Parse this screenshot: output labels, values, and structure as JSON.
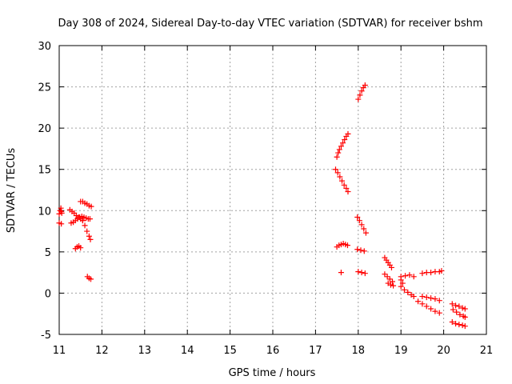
{
  "chart_data": {
    "type": "scatter",
    "title": "Day 308 of 2024, Sidereal Day-to-day VTEC variation (SDTVAR) for receiver bshm",
    "xlabel": "GPS time / hours",
    "ylabel": "SDTVAR / TECUs",
    "xlim": [
      11,
      21
    ],
    "ylim": [
      -5,
      30
    ],
    "grid": true,
    "xticks": [
      "11",
      "12",
      "13",
      "14",
      "15",
      "16",
      "17",
      "18",
      "19",
      "20",
      "21"
    ],
    "yticks": [
      "-5",
      "0",
      "5",
      "10",
      "15",
      "20",
      "25",
      "30"
    ],
    "marker": "+",
    "color": "#ff0000",
    "series": [
      {
        "name": "s1",
        "x": [
          11.0,
          11.02,
          11.04,
          11.05,
          11.06
        ],
        "y": [
          9.6,
          10.0,
          10.3,
          9.9,
          9.7
        ]
      },
      {
        "name": "s2",
        "x": [
          11.0,
          11.05
        ],
        "y": [
          8.5,
          8.4
        ]
      },
      {
        "name": "s3",
        "x": [
          11.25,
          11.3,
          11.35,
          11.4,
          11.45,
          11.5,
          11.55
        ],
        "y": [
          10.1,
          9.9,
          9.7,
          9.4,
          9.2,
          9.0,
          8.8
        ]
      },
      {
        "name": "s4",
        "x": [
          11.28,
          11.33,
          11.38,
          11.43,
          11.48,
          11.53,
          11.58,
          11.63,
          11.68,
          11.72
        ],
        "y": [
          8.5,
          8.6,
          8.8,
          9.0,
          9.2,
          9.3,
          9.2,
          9.1,
          9.0,
          9.0
        ]
      },
      {
        "name": "s5",
        "x": [
          11.5,
          11.55,
          11.6,
          11.65,
          11.7,
          11.75
        ],
        "y": [
          11.1,
          11.1,
          10.9,
          10.8,
          10.6,
          10.5
        ]
      },
      {
        "name": "s6",
        "x": [
          11.55,
          11.6,
          11.65,
          11.7,
          11.73
        ],
        "y": [
          8.8,
          8.2,
          7.5,
          6.9,
          6.5
        ]
      },
      {
        "name": "s7",
        "x": [
          11.38,
          11.42,
          11.46,
          11.5
        ],
        "y": [
          5.4,
          5.6,
          5.7,
          5.5
        ]
      },
      {
        "name": "s8",
        "x": [
          11.66,
          11.7,
          11.74
        ],
        "y": [
          2.0,
          1.8,
          1.7
        ]
      },
      {
        "name": "s9",
        "x": [
          17.5,
          17.53,
          17.56,
          17.6,
          17.64,
          17.68,
          17.72,
          17.76
        ],
        "y": [
          16.5,
          17.0,
          17.4,
          17.8,
          18.2,
          18.6,
          19.0,
          19.3
        ]
      },
      {
        "name": "s10",
        "x": [
          17.47,
          17.52,
          17.57,
          17.62,
          17.67,
          17.72,
          17.76
        ],
        "y": [
          15.0,
          14.6,
          14.1,
          13.6,
          13.1,
          12.7,
          12.3
        ]
      },
      {
        "name": "s11",
        "x": [
          17.5,
          17.55,
          17.6,
          17.65,
          17.7,
          17.75
        ],
        "y": [
          5.6,
          5.8,
          5.9,
          6.0,
          5.9,
          5.8
        ]
      },
      {
        "name": "s12",
        "x": [
          17.6
        ],
        "y": [
          2.5
        ]
      },
      {
        "name": "s13",
        "x": [
          18.0,
          18.04,
          18.08,
          18.12,
          18.16
        ],
        "y": [
          23.5,
          24.0,
          24.5,
          24.9,
          25.2
        ]
      },
      {
        "name": "s14",
        "x": [
          17.98,
          18.03,
          18.08,
          18.13,
          18.18
        ],
        "y": [
          9.2,
          8.8,
          8.3,
          7.8,
          7.3
        ]
      },
      {
        "name": "s15",
        "x": [
          17.98,
          18.06,
          18.14
        ],
        "y": [
          5.3,
          5.2,
          5.1
        ]
      },
      {
        "name": "s16",
        "x": [
          18.0,
          18.08,
          18.16
        ],
        "y": [
          2.6,
          2.5,
          2.4
        ]
      },
      {
        "name": "s17",
        "x": [
          18.62,
          18.66,
          18.7,
          18.74,
          18.78
        ],
        "y": [
          4.3,
          4.0,
          3.7,
          3.4,
          3.1
        ]
      },
      {
        "name": "s18",
        "x": [
          18.62,
          18.68,
          18.74,
          18.8
        ],
        "y": [
          2.3,
          2.0,
          1.7,
          1.4
        ]
      },
      {
        "name": "s19",
        "x": [
          18.7,
          18.76,
          18.82
        ],
        "y": [
          1.2,
          1.0,
          0.9
        ]
      },
      {
        "name": "s20",
        "x": [
          19.0,
          19.1,
          19.2,
          19.3
        ],
        "y": [
          2.0,
          2.1,
          2.2,
          2.0
        ]
      },
      {
        "name": "s21",
        "x": [
          19.0,
          19.08,
          19.16,
          19.24,
          19.3
        ],
        "y": [
          0.8,
          0.4,
          0.1,
          -0.2,
          -0.4
        ]
      },
      {
        "name": "s22",
        "x": [
          19.0,
          19.04
        ],
        "y": [
          1.6,
          1.2
        ]
      },
      {
        "name": "s23",
        "x": [
          19.4,
          19.5,
          19.6,
          19.7,
          19.8,
          19.9
        ],
        "y": [
          -1.0,
          -1.3,
          -1.6,
          -1.9,
          -2.2,
          -2.4
        ]
      },
      {
        "name": "s24",
        "x": [
          19.5,
          19.6,
          19.7,
          19.8,
          19.9
        ],
        "y": [
          -0.4,
          -0.5,
          -0.6,
          -0.7,
          -0.9
        ]
      },
      {
        "name": "s25",
        "x": [
          19.5,
          19.6,
          19.7,
          19.8,
          19.9,
          19.95
        ],
        "y": [
          2.4,
          2.5,
          2.5,
          2.6,
          2.6,
          2.7
        ]
      },
      {
        "name": "s26",
        "x": [
          20.2,
          20.28,
          20.36,
          20.44,
          20.5
        ],
        "y": [
          -1.3,
          -1.5,
          -1.6,
          -1.8,
          -1.9
        ]
      },
      {
        "name": "s27",
        "x": [
          20.22,
          20.3,
          20.38,
          20.46,
          20.5
        ],
        "y": [
          -2.0,
          -2.3,
          -2.6,
          -2.8,
          -2.9
        ]
      },
      {
        "name": "s28",
        "x": [
          20.2,
          20.28,
          20.36,
          20.44,
          20.5
        ],
        "y": [
          -3.5,
          -3.7,
          -3.8,
          -3.9,
          -4.0
        ]
      }
    ]
  }
}
